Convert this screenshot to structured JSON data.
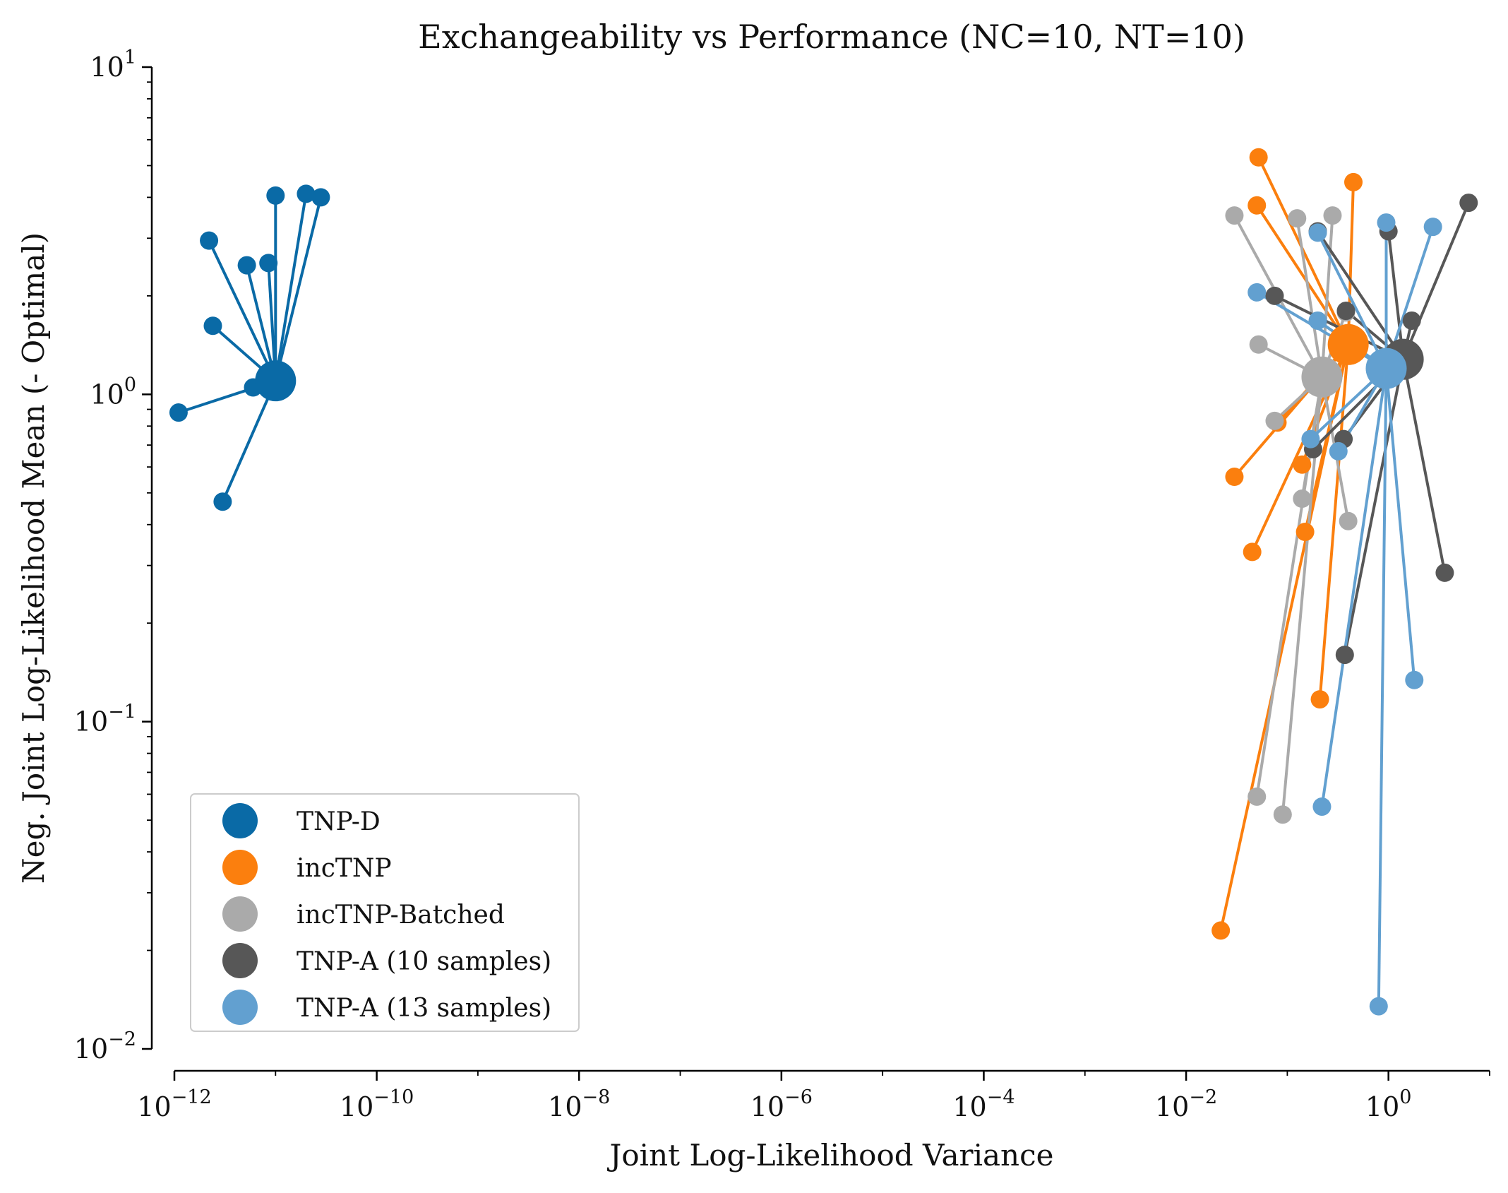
{
  "chart_data": {
    "type": "scatter",
    "title": "Exchangeability vs Performance (NC=10, NT=10)",
    "xlabel": "Joint Log-Likelihood Variance",
    "ylabel": "Neg. Joint Log-Likelihood Mean (- Optimal)",
    "xscale": "log",
    "yscale": "log",
    "xlim": [
      1e-12,
      10
    ],
    "ylim": [
      0.01,
      10
    ],
    "x_ticks": [
      {
        "value": 1e-12,
        "base": "10",
        "exp": "−12"
      },
      {
        "value": 1e-10,
        "base": "10",
        "exp": "−10"
      },
      {
        "value": 1e-08,
        "base": "10",
        "exp": "−8"
      },
      {
        "value": 1e-06,
        "base": "10",
        "exp": "−6"
      },
      {
        "value": 0.0001,
        "base": "10",
        "exp": "−4"
      },
      {
        "value": 0.01,
        "base": "10",
        "exp": "−2"
      },
      {
        "value": 1,
        "base": "10",
        "exp": "0"
      }
    ],
    "y_ticks": [
      {
        "value": 10,
        "base": "10",
        "exp": "1"
      },
      {
        "value": 1,
        "base": "10",
        "exp": "0"
      },
      {
        "value": 0.1,
        "base": "10",
        "exp": "−1"
      },
      {
        "value": 0.01,
        "base": "10",
        "exp": "−2"
      }
    ],
    "grid": false,
    "legend_position": "lower-left",
    "series": [
      {
        "name": "TNP-D",
        "color": "#0a6aa6",
        "center": [
          1e-11,
          1.1
        ],
        "points": [
          [
            1.1e-12,
            0.88
          ],
          [
            2.2e-12,
            2.95
          ],
          [
            2.4e-12,
            1.62
          ],
          [
            3e-12,
            0.47
          ],
          [
            5.2e-12,
            2.48
          ],
          [
            6e-12,
            1.05
          ],
          [
            8.5e-12,
            2.52
          ],
          [
            1e-11,
            4.05
          ],
          [
            2e-11,
            4.1
          ],
          [
            2.8e-11,
            4.0
          ]
        ]
      },
      {
        "name": "incTNP",
        "color": "#fb7f0e",
        "center": [
          0.4,
          1.42
        ],
        "points": [
          [
            0.022,
            0.023
          ],
          [
            0.03,
            0.56
          ],
          [
            0.045,
            0.33
          ],
          [
            0.05,
            3.78
          ],
          [
            0.052,
            5.3
          ],
          [
            0.08,
            0.82
          ],
          [
            0.14,
            0.61
          ],
          [
            0.15,
            0.38
          ],
          [
            0.21,
            0.117
          ],
          [
            0.45,
            4.45
          ]
        ]
      },
      {
        "name": "incTNP-Batched",
        "color": "#aaaaaa",
        "center": [
          0.22,
          1.13
        ],
        "points": [
          [
            0.03,
            3.52
          ],
          [
            0.05,
            0.059
          ],
          [
            0.052,
            1.42
          ],
          [
            0.075,
            0.83
          ],
          [
            0.09,
            0.052
          ],
          [
            0.125,
            3.45
          ],
          [
            0.14,
            0.48
          ],
          [
            0.28,
            3.52
          ],
          [
            0.38,
            1.78
          ],
          [
            0.4,
            0.41
          ]
        ]
      },
      {
        "name": "TNP-A (10 samples)",
        "color": "#575757",
        "center": [
          1.4,
          1.28
        ],
        "points": [
          [
            0.075,
            2.0
          ],
          [
            0.18,
            0.68
          ],
          [
            0.2,
            3.15
          ],
          [
            0.36,
            0.73
          ],
          [
            0.37,
            0.16
          ],
          [
            0.38,
            1.8
          ],
          [
            1.0,
            3.15
          ],
          [
            1.7,
            1.68
          ],
          [
            3.6,
            0.285
          ],
          [
            6.2,
            3.85
          ]
        ]
      },
      {
        "name": "TNP-A (13 samples)",
        "color": "#62a0d0",
        "center": [
          0.95,
          1.2
        ],
        "points": [
          [
            0.05,
            2.05
          ],
          [
            0.17,
            0.73
          ],
          [
            0.2,
            3.12
          ],
          [
            0.2,
            1.68
          ],
          [
            0.22,
            0.055
          ],
          [
            0.32,
            0.67
          ],
          [
            0.8,
            0.0135
          ],
          [
            0.95,
            3.35
          ],
          [
            1.8,
            0.134
          ],
          [
            2.75,
            3.25
          ]
        ]
      }
    ]
  }
}
